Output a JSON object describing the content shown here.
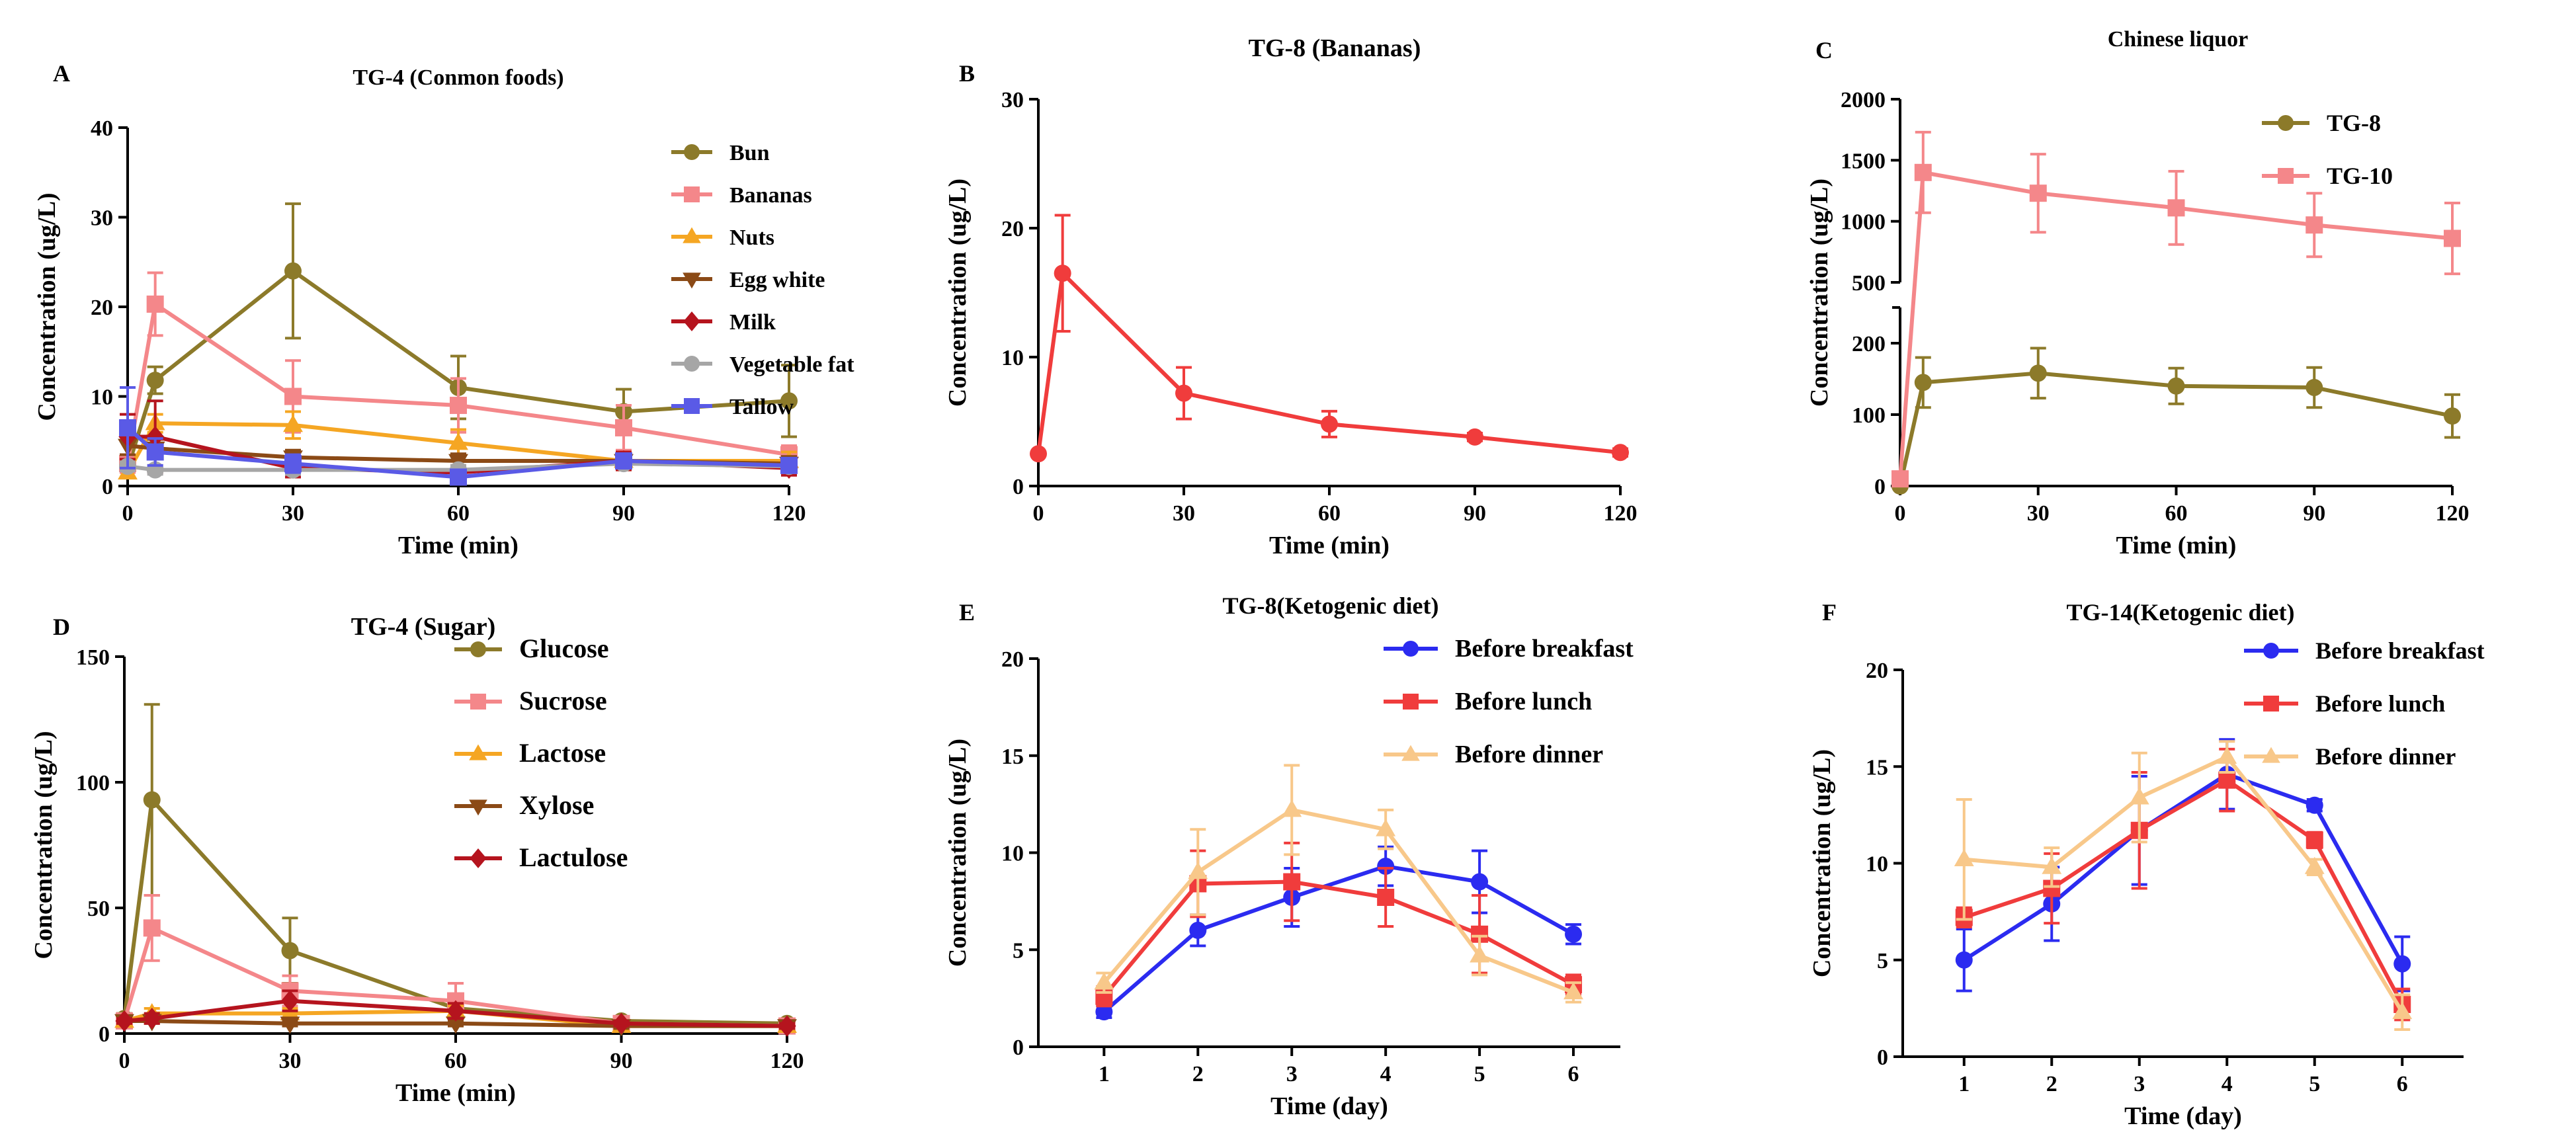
{
  "chart_data": [
    {
      "id": "A",
      "type": "line",
      "panel_label": "A",
      "title": "TG-4  (Conmon foods)",
      "xlabel": "Time  (min)",
      "ylabel": "Concentration  (ug/L)",
      "xlim": [
        0,
        120
      ],
      "ylim": [
        0,
        40
      ],
      "xticks": [
        0,
        30,
        60,
        90,
        120
      ],
      "yticks": [
        0,
        10,
        20,
        30,
        40
      ],
      "x": [
        0,
        5,
        30,
        60,
        90,
        120
      ],
      "series": [
        {
          "name": "Bun",
          "color": "#8c7a2a",
          "marker": "circle",
          "values": [
            2,
            11.8,
            24,
            11,
            8.3,
            9.5
          ],
          "err": [
            1,
            1.5,
            7.5,
            3.5,
            2.5,
            4
          ]
        },
        {
          "name": "Bananas",
          "color": "#f4878a",
          "marker": "square",
          "values": [
            2.5,
            20.3,
            10,
            9,
            6.5,
            3.5
          ],
          "err": [
            1,
            3.5,
            4,
            3,
            2.5,
            1
          ]
        },
        {
          "name": "Nuts",
          "color": "#f5a623",
          "marker": "triangle-up",
          "values": [
            1.5,
            7,
            6.8,
            4.8,
            2.8,
            2.8
          ],
          "err": [
            0.5,
            1,
            1.5,
            1.5,
            1,
            1
          ]
        },
        {
          "name": "Egg white",
          "color": "#8b4a16",
          "marker": "triangle-down",
          "values": [
            4.5,
            4.2,
            3.2,
            2.8,
            2.8,
            2.5
          ],
          "err": [
            1,
            1,
            0.8,
            0.8,
            0.8,
            0.8
          ]
        },
        {
          "name": "Milk",
          "color": "#b5141e",
          "marker": "diamond",
          "values": [
            5.5,
            5.5,
            2,
            1.5,
            2.8,
            2
          ],
          "err": [
            2.5,
            4,
            1,
            0.8,
            1,
            0.8
          ]
        },
        {
          "name": "Vegetable fat",
          "color": "#a6a6a6",
          "marker": "circle",
          "values": [
            2.2,
            1.8,
            1.8,
            1.8,
            2.5,
            2.2
          ],
          "err": [
            0.5,
            0.5,
            0.5,
            0.5,
            0.5,
            0.5
          ]
        },
        {
          "name": "Tallow",
          "color": "#5a5ae6",
          "marker": "square",
          "values": [
            6.5,
            3.8,
            2.5,
            1,
            2.8,
            2.3
          ],
          "err": [
            4.5,
            1.5,
            1,
            0.5,
            0.8,
            0.6
          ]
        }
      ]
    },
    {
      "id": "B",
      "type": "line",
      "panel_label": "B",
      "title": "TG-8  (Bananas)",
      "xlabel": "Time  (min)",
      "ylabel": "Concentration  (ug/L)",
      "xlim": [
        0,
        120
      ],
      "ylim": [
        0,
        30
      ],
      "xticks": [
        0,
        30,
        60,
        90,
        120
      ],
      "yticks": [
        0,
        10,
        20,
        30
      ],
      "x": [
        0,
        5,
        30,
        60,
        90,
        120
      ],
      "series": [
        {
          "name": "Bananas",
          "color": "#f03c3c",
          "marker": "circle",
          "values": [
            2.5,
            16.5,
            7.2,
            4.8,
            3.8,
            2.6
          ],
          "err": [
            0,
            4.5,
            2,
            1,
            0.3,
            0.3
          ]
        }
      ]
    },
    {
      "id": "C",
      "type": "line",
      "panel_label": "C",
      "title": "Chinese liquor",
      "xlabel": "Time  (min)",
      "ylabel": "Concentration  (ug/L)",
      "xlim": [
        0,
        120
      ],
      "ylim_lower": [
        0,
        250
      ],
      "ylim_upper": [
        500,
        2000
      ],
      "xticks": [
        0,
        30,
        60,
        90,
        120
      ],
      "yticks_lower": [
        0,
        100,
        200
      ],
      "yticks_upper": [
        500,
        1000,
        1500,
        2000
      ],
      "x": [
        0,
        5,
        30,
        60,
        90,
        120
      ],
      "series": [
        {
          "name": "TG-8",
          "color": "#8c7a2a",
          "marker": "circle",
          "values": [
            0,
            145,
            158,
            140,
            138,
            98
          ],
          "err": [
            5,
            35,
            35,
            25,
            28,
            30
          ]
        },
        {
          "name": "TG-10",
          "color": "#f4878a",
          "marker": "square",
          "values": [
            10,
            1400,
            1230,
            1110,
            970,
            860
          ],
          "err": [
            10,
            330,
            320,
            300,
            260,
            290
          ]
        }
      ]
    },
    {
      "id": "D",
      "type": "line",
      "panel_label": "D",
      "title": "TG-4  (Sugar)",
      "xlabel": "Time  (min)",
      "ylabel": "Concentration  (ug/L)",
      "xlim": [
        0,
        120
      ],
      "ylim": [
        0,
        150
      ],
      "xticks": [
        0,
        30,
        60,
        90,
        120
      ],
      "yticks": [
        0,
        50,
        100,
        150
      ],
      "x": [
        0,
        5,
        30,
        60,
        90,
        120
      ],
      "series": [
        {
          "name": "Glucose",
          "color": "#8c7a2a",
          "marker": "circle",
          "values": [
            6,
            93,
            33,
            10,
            5,
            4
          ],
          "err": [
            2,
            38,
            13,
            4,
            1.5,
            1.5
          ]
        },
        {
          "name": "Sucrose",
          "color": "#f4878a",
          "marker": "square",
          "values": [
            5,
            42,
            17,
            13,
            4,
            3
          ],
          "err": [
            2,
            13,
            6,
            7,
            1.5,
            1
          ]
        },
        {
          "name": "Lactose",
          "color": "#f5a623",
          "marker": "triangle-up",
          "values": [
            5,
            8,
            8,
            9,
            3,
            3
          ],
          "err": [
            1,
            2,
            2,
            2,
            1,
            1
          ]
        },
        {
          "name": "Xylose",
          "color": "#8b4a16",
          "marker": "triangle-down",
          "values": [
            5,
            5,
            4,
            4,
            3,
            3
          ],
          "err": [
            1,
            1,
            1,
            1,
            1,
            1
          ]
        },
        {
          "name": "Lactulose",
          "color": "#b5141e",
          "marker": "diamond",
          "values": [
            5,
            6,
            13,
            9,
            4,
            3
          ],
          "err": [
            1,
            2,
            4,
            3,
            1,
            1
          ]
        }
      ]
    },
    {
      "id": "E",
      "type": "line",
      "panel_label": "E",
      "title": "TG-8(Ketogenic diet)",
      "xlabel": "Time  (day)",
      "ylabel": "Concentration  (ug/L)",
      "xlim": [
        0.3,
        6.5
      ],
      "ylim": [
        0,
        20
      ],
      "xticks": [
        1,
        2,
        3,
        4,
        5,
        6
      ],
      "yticks": [
        0,
        5,
        10,
        15,
        20
      ],
      "x": [
        1,
        2,
        3,
        4,
        5,
        6
      ],
      "series": [
        {
          "name": "Before breakfast",
          "color": "#2b2bf0",
          "marker": "circle",
          "values": [
            1.8,
            6,
            7.7,
            9.3,
            8.5,
            5.8
          ],
          "err": [
            0.3,
            0.8,
            1.5,
            1,
            1.6,
            0.5
          ]
        },
        {
          "name": "Before lunch",
          "color": "#f03c3c",
          "marker": "square",
          "values": [
            2.6,
            8.4,
            8.5,
            7.7,
            5.8,
            3.2
          ],
          "err": [
            0.5,
            1.7,
            2,
            1.5,
            2,
            0.5
          ]
        },
        {
          "name": "Before dinner",
          "color": "#f8c88a",
          "marker": "triangle-up",
          "values": [
            3.3,
            9,
            12.2,
            11.2,
            4.7,
            2.8
          ],
          "err": [
            0.5,
            2.2,
            2.3,
            1,
            1,
            0.5
          ]
        }
      ]
    },
    {
      "id": "F",
      "type": "line",
      "panel_label": "F",
      "title": "TG-14(Ketogenic diet)",
      "xlabel": "Time  (day)",
      "ylabel": "Concentration  (ug/L)",
      "xlim": [
        0.3,
        6.7
      ],
      "ylim": [
        0,
        20
      ],
      "xticks": [
        1,
        2,
        3,
        4,
        5,
        6
      ],
      "yticks": [
        0,
        5,
        10,
        15,
        20
      ],
      "x": [
        1,
        2,
        3,
        4,
        5,
        6
      ],
      "series": [
        {
          "name": "Before breakfast",
          "color": "#2b2bf0",
          "marker": "circle",
          "values": [
            5,
            7.9,
            11.7,
            14.6,
            13,
            4.8
          ],
          "err": [
            1.6,
            1.9,
            2.8,
            1.8,
            0.3,
            1.4
          ]
        },
        {
          "name": "Before lunch",
          "color": "#f03c3c",
          "marker": "square",
          "values": [
            7.2,
            8.7,
            11.7,
            14.3,
            11.2,
            2.7
          ],
          "err": [
            0.5,
            1.8,
            3,
            1.6,
            0.4,
            0.8
          ]
        },
        {
          "name": "Before dinner",
          "color": "#f8c88a",
          "marker": "triangle-up",
          "values": [
            10.2,
            9.8,
            13.4,
            15.5,
            9.8,
            2.3
          ],
          "err": [
            3.1,
            1,
            2.3,
            0.8,
            0.4,
            0.9
          ]
        }
      ]
    }
  ]
}
